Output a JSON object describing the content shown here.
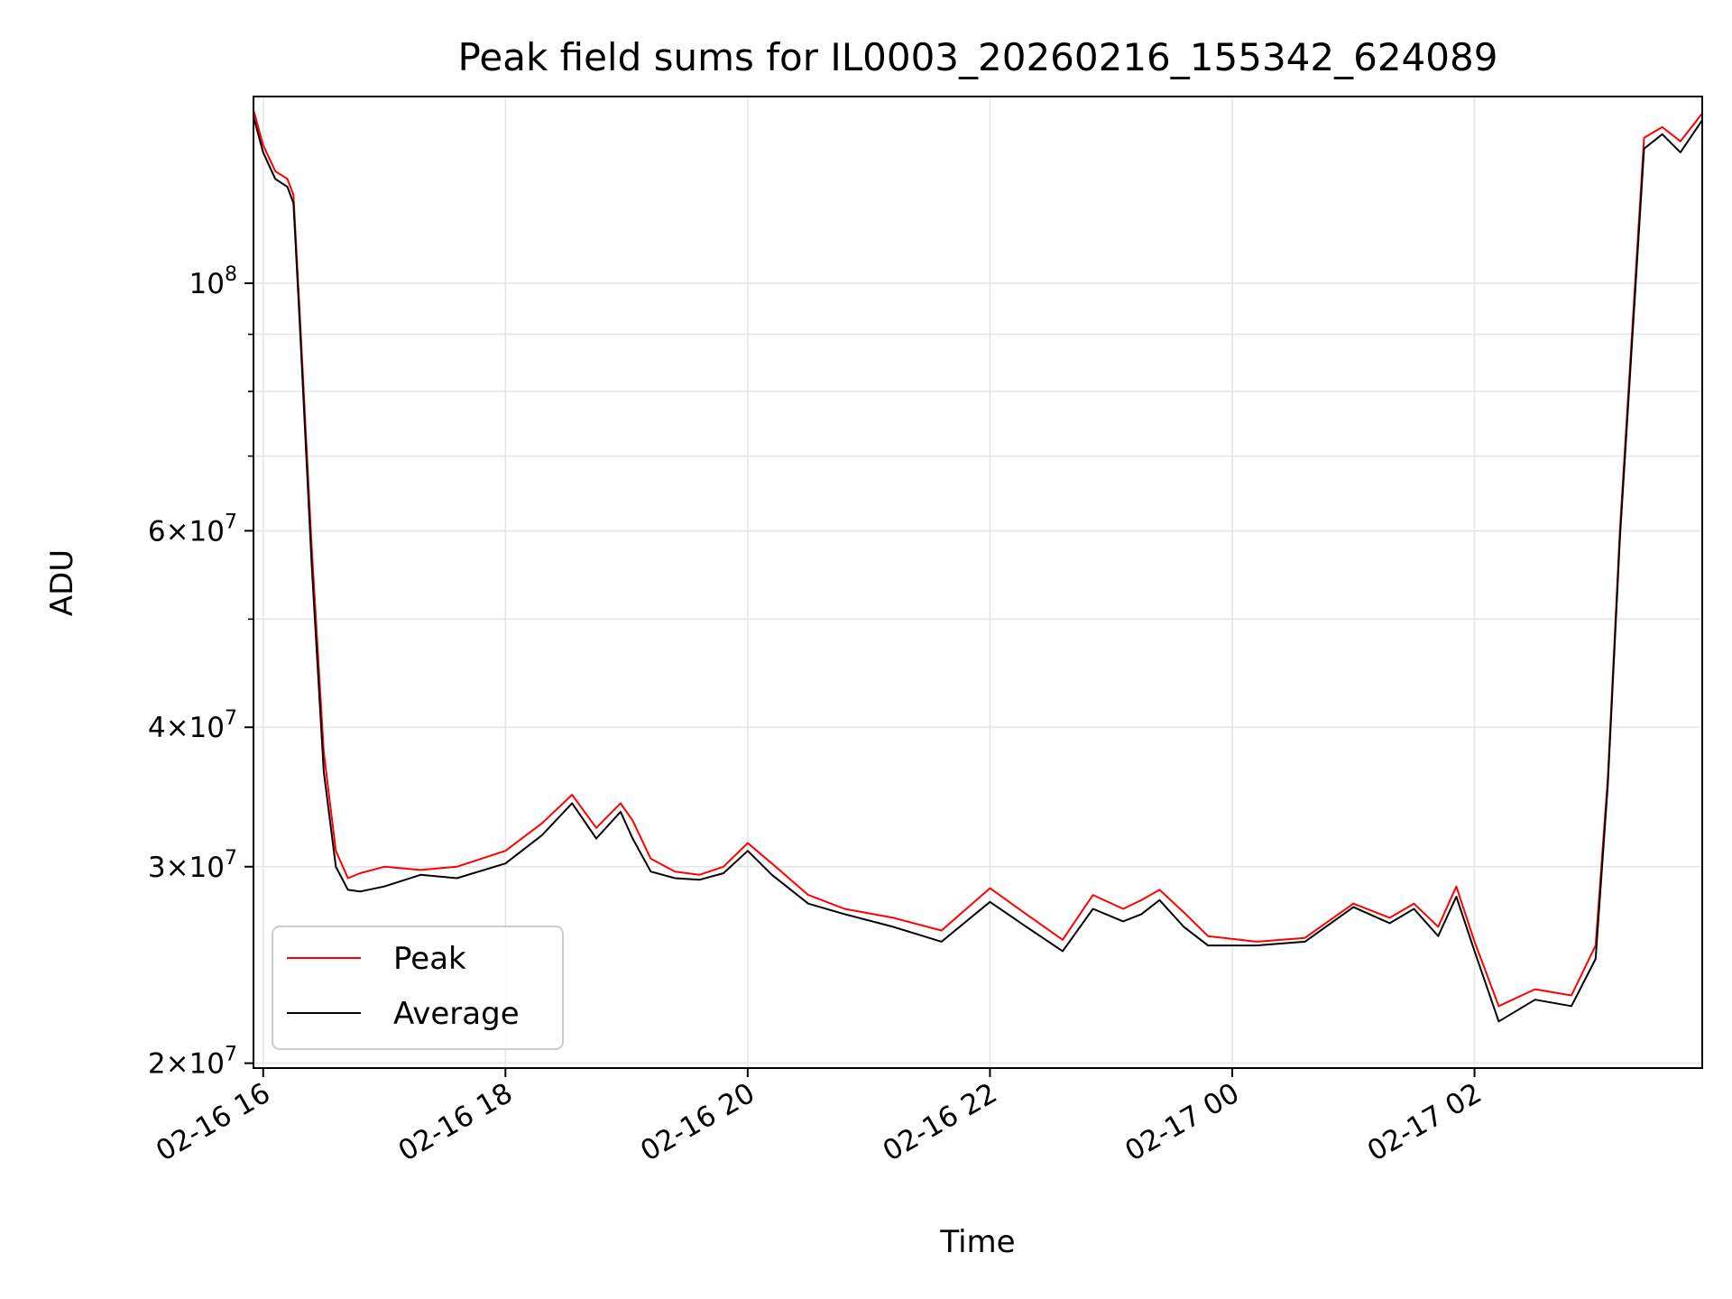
{
  "chart_data": {
    "type": "line",
    "title": "Peak field sums for IL0003_20260216_155342_624089",
    "xlabel": "Time",
    "ylabel": "ADU",
    "yscale": "log",
    "ylim": [
      19800000,
      147000000
    ],
    "xlim_hours": [
      15.92,
      27.88
    ],
    "x_ticks": [
      {
        "hour": 16,
        "label": "02-16 16"
      },
      {
        "hour": 18,
        "label": "02-16 18"
      },
      {
        "hour": 20,
        "label": "02-16 20"
      },
      {
        "hour": 22,
        "label": "02-16 22"
      },
      {
        "hour": 24,
        "label": "02-17 00"
      },
      {
        "hour": 26,
        "label": "02-17 02"
      }
    ],
    "y_major_ticks": [
      {
        "value": 20000000,
        "mantissa": "2",
        "exponent": "7"
      },
      {
        "value": 30000000,
        "mantissa": "3",
        "exponent": "7"
      },
      {
        "value": 40000000,
        "mantissa": "4",
        "exponent": "7"
      },
      {
        "value": 60000000,
        "mantissa": "6",
        "exponent": "7"
      },
      {
        "value": 100000000,
        "mantissa": "",
        "exponent": "8"
      }
    ],
    "y_minor_ticks": [
      50000000,
      70000000,
      80000000,
      90000000
    ],
    "legend": {
      "position": "lower-left",
      "entries": [
        "Peak",
        "Average"
      ]
    },
    "series": [
      {
        "name": "Peak",
        "color": "#ff0000",
        "hours": [
          15.92,
          16.0,
          16.1,
          16.2,
          16.25,
          16.3,
          16.4,
          16.5,
          16.6,
          16.7,
          16.8,
          17.0,
          17.3,
          17.6,
          18.0,
          18.3,
          18.55,
          18.75,
          18.95,
          19.05,
          19.2,
          19.4,
          19.6,
          19.8,
          20.0,
          20.2,
          20.5,
          20.8,
          21.2,
          21.6,
          22.0,
          22.3,
          22.6,
          22.85,
          23.1,
          23.25,
          23.4,
          23.6,
          23.8,
          24.2,
          24.6,
          25.0,
          25.3,
          25.5,
          25.7,
          25.85,
          26.0,
          26.2,
          26.5,
          26.8,
          27.0,
          27.1,
          27.2,
          27.4,
          27.55,
          27.7,
          27.88
        ],
        "values": [
          143000000,
          133000000,
          126000000,
          124000000,
          120000000,
          95000000,
          58000000,
          38000000,
          31000000,
          29300000,
          29600000,
          30000000,
          29800000,
          30000000,
          31000000,
          32800000,
          34800000,
          32500000,
          34200000,
          33000000,
          30500000,
          29700000,
          29500000,
          30000000,
          31500000,
          30200000,
          28300000,
          27500000,
          27000000,
          26300000,
          28700000,
          27200000,
          25800000,
          28300000,
          27500000,
          28000000,
          28600000,
          27300000,
          26000000,
          25700000,
          25900000,
          27800000,
          27000000,
          27800000,
          26500000,
          28800000,
          25700000,
          22500000,
          23300000,
          23000000,
          25500000,
          36000000,
          60000000,
          135000000,
          138000000,
          134000000,
          142000000
        ]
      },
      {
        "name": "Average",
        "color": "#000000",
        "hours": [
          15.92,
          16.0,
          16.1,
          16.2,
          16.25,
          16.3,
          16.4,
          16.5,
          16.6,
          16.7,
          16.8,
          17.0,
          17.3,
          17.6,
          18.0,
          18.3,
          18.55,
          18.75,
          18.95,
          19.05,
          19.2,
          19.4,
          19.6,
          19.8,
          20.0,
          20.2,
          20.5,
          20.8,
          21.2,
          21.6,
          22.0,
          22.3,
          22.6,
          22.85,
          23.1,
          23.25,
          23.4,
          23.6,
          23.8,
          24.2,
          24.6,
          25.0,
          25.3,
          25.5,
          25.7,
          25.85,
          26.0,
          26.2,
          26.5,
          26.8,
          27.0,
          27.1,
          27.2,
          27.4,
          27.55,
          27.7,
          27.88
        ],
        "values": [
          141000000,
          131000000,
          124000000,
          122000000,
          118000000,
          93000000,
          56000000,
          36500000,
          30000000,
          28600000,
          28500000,
          28800000,
          29500000,
          29300000,
          30200000,
          32000000,
          34200000,
          31800000,
          33600000,
          31800000,
          29700000,
          29300000,
          29200000,
          29600000,
          31000000,
          29500000,
          27800000,
          27200000,
          26500000,
          25700000,
          27900000,
          26500000,
          25200000,
          27500000,
          26800000,
          27200000,
          28000000,
          26500000,
          25500000,
          25500000,
          25700000,
          27600000,
          26700000,
          27500000,
          26000000,
          28200000,
          25200000,
          21800000,
          22800000,
          22500000,
          24800000,
          35500000,
          59000000,
          132000000,
          136000000,
          131000000,
          140000000
        ]
      }
    ]
  }
}
